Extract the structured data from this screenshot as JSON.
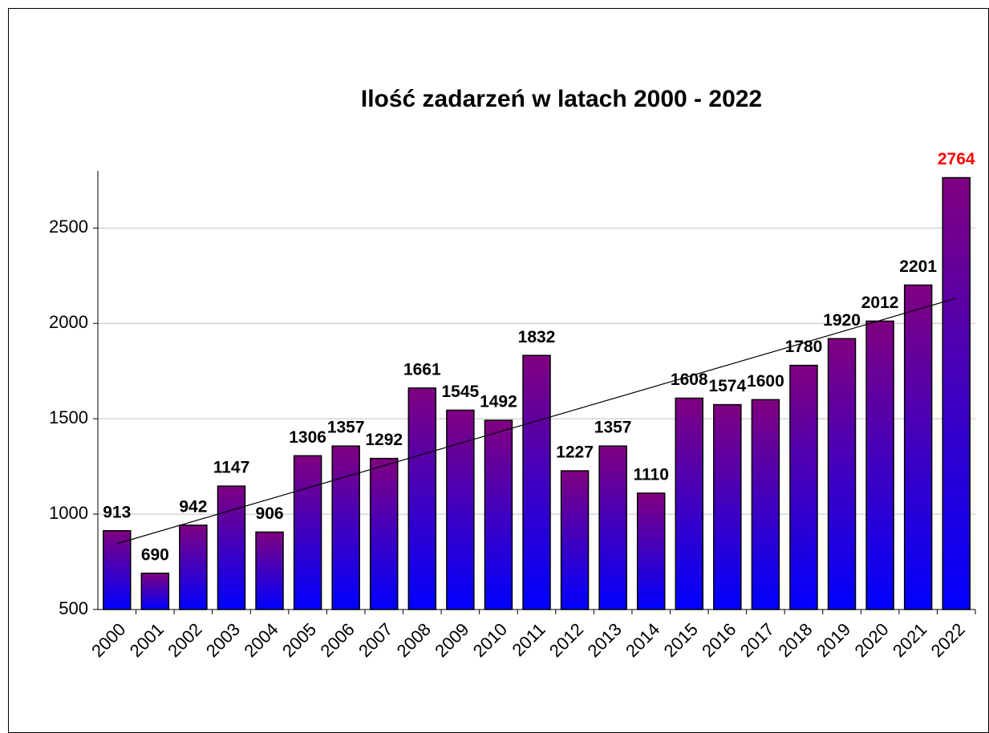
{
  "chart_data": {
    "type": "bar",
    "title": "Ilość zadarzeń w latach 2000 - 2022",
    "categories": [
      "2000",
      "2001",
      "2002",
      "2003",
      "2004",
      "2005",
      "2006",
      "2007",
      "2008",
      "2009",
      "2010",
      "2011",
      "2012",
      "2013",
      "2014",
      "2015",
      "2016",
      "2017",
      "2018",
      "2019",
      "2020",
      "2021",
      "2022"
    ],
    "values": [
      913,
      690,
      942,
      1147,
      906,
      1306,
      1357,
      1292,
      1661,
      1545,
      1492,
      1832,
      1227,
      1357,
      1110,
      1608,
      1574,
      1600,
      1780,
      1920,
      2012,
      2201,
      2764
    ],
    "color_top": "#800080",
    "color_bottom": "#0000ff",
    "label_color": "#000000",
    "last_label_color": "#ff0000",
    "ylim": [
      500,
      2800
    ],
    "yticks": [
      500,
      1000,
      1500,
      2000,
      2500
    ],
    "grid": true,
    "trendline": true
  }
}
